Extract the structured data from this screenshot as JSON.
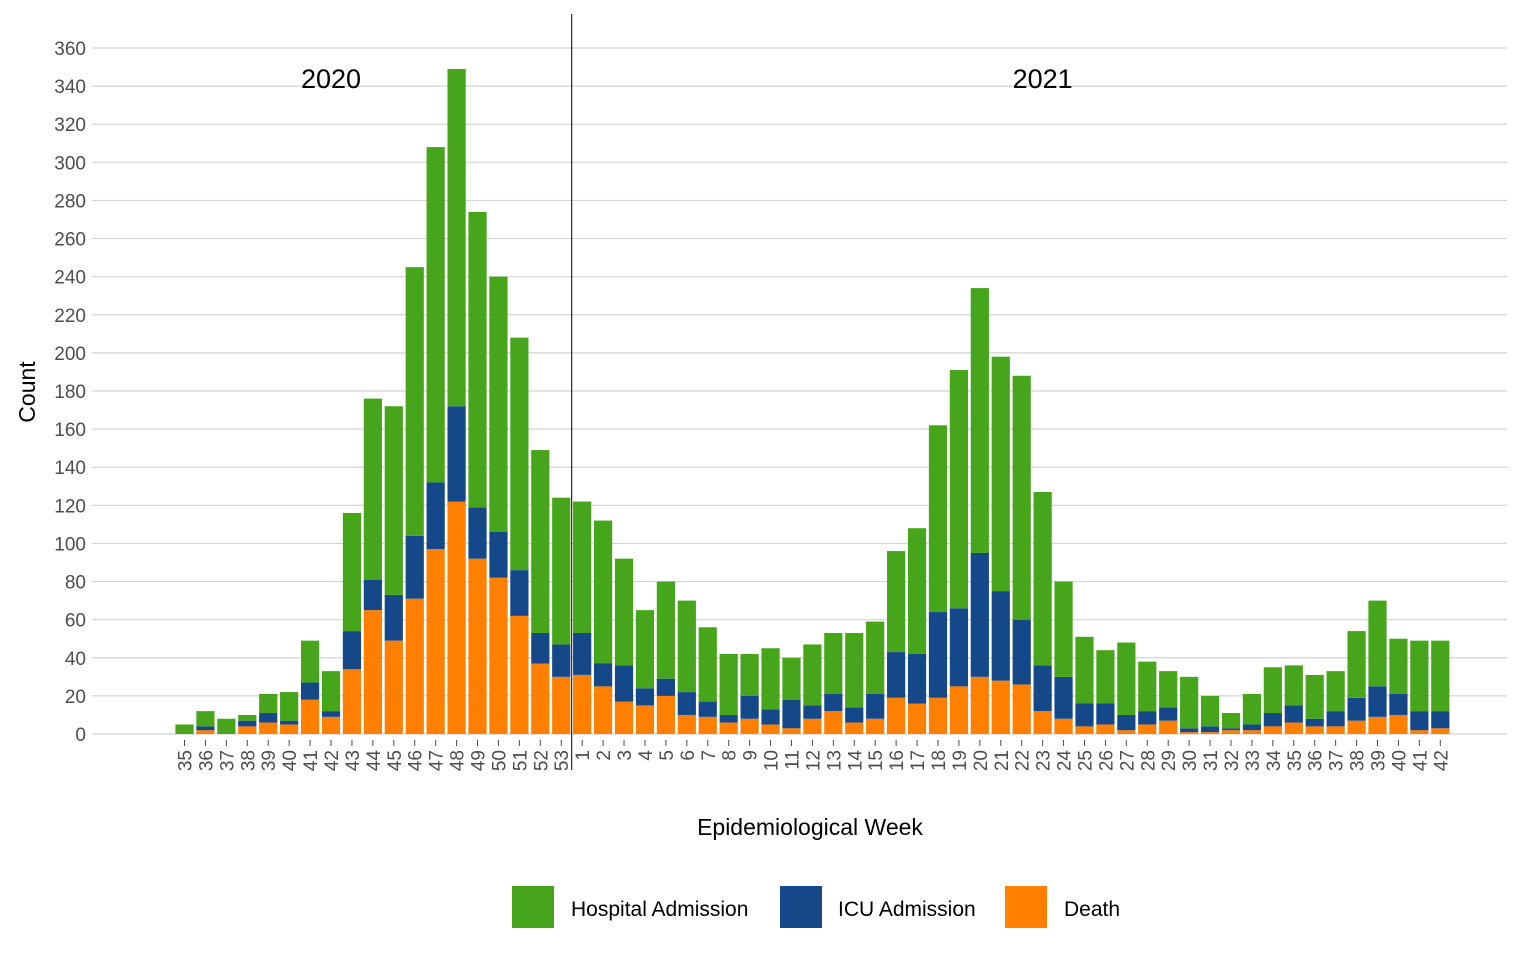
{
  "chart_data": {
    "type": "bar",
    "stacked": true,
    "ylabel": "Count",
    "xlabel": "Epidemiological Week",
    "ylim": [
      0,
      360
    ],
    "yticks": [
      0,
      20,
      40,
      60,
      80,
      100,
      120,
      140,
      160,
      180,
      200,
      220,
      240,
      260,
      280,
      300,
      320,
      340,
      360
    ],
    "grid": true,
    "legend_position": "bottom",
    "year_labels": [
      {
        "text": "2020",
        "category_index": 7
      },
      {
        "text": "2021",
        "category_index": 41
      }
    ],
    "divider_before_index": 19,
    "categories": [
      "35",
      "36",
      "37",
      "38",
      "39",
      "40",
      "41",
      "42",
      "43",
      "44",
      "45",
      "46",
      "47",
      "48",
      "49",
      "50",
      "51",
      "52",
      "53",
      "1",
      "2",
      "3",
      "4",
      "5",
      "6",
      "7",
      "8",
      "9",
      "10",
      "11",
      "12",
      "13",
      "14",
      "15",
      "16",
      "17",
      "18",
      "19",
      "20",
      "21",
      "22",
      "23",
      "24",
      "25",
      "26",
      "27",
      "28",
      "29",
      "30",
      "31",
      "32",
      "33",
      "34",
      "35",
      "36",
      "37",
      "38",
      "39",
      "40",
      "41",
      "42"
    ],
    "series": [
      {
        "name": "Death",
        "color": "#FF7F00",
        "values": [
          0,
          2,
          0,
          4,
          6,
          5,
          18,
          9,
          34,
          65,
          49,
          71,
          97,
          122,
          92,
          82,
          62,
          37,
          30,
          31,
          25,
          17,
          15,
          20,
          10,
          9,
          6,
          8,
          5,
          3,
          8,
          12,
          6,
          8,
          19,
          16,
          19,
          25,
          30,
          28,
          26,
          12,
          8,
          4,
          5,
          2,
          5,
          7,
          1,
          1,
          2,
          2,
          4,
          6,
          4,
          4,
          7,
          9,
          10,
          2,
          3
        ]
      },
      {
        "name": "ICU Admission",
        "color": "#154889",
        "values": [
          0,
          2,
          0,
          3,
          5,
          2,
          9,
          3,
          20,
          16,
          24,
          33,
          35,
          50,
          27,
          24,
          24,
          16,
          17,
          22,
          12,
          19,
          9,
          9,
          12,
          8,
          4,
          12,
          8,
          15,
          7,
          9,
          8,
          13,
          24,
          26,
          45,
          41,
          65,
          47,
          34,
          24,
          22,
          12,
          11,
          8,
          7,
          7,
          2,
          3,
          1,
          3,
          7,
          9,
          4,
          8,
          12,
          16,
          11,
          10,
          9
        ]
      },
      {
        "name": "Hospital Admission",
        "color": "#47A51B",
        "values": [
          5,
          8,
          8,
          3,
          10,
          15,
          22,
          21,
          62,
          95,
          99,
          141,
          176,
          177,
          155,
          134,
          122,
          96,
          77,
          69,
          75,
          56,
          41,
          51,
          48,
          39,
          32,
          22,
          32,
          22,
          32,
          32,
          39,
          38,
          53,
          66,
          98,
          125,
          139,
          123,
          128,
          91,
          50,
          35,
          28,
          38,
          26,
          19,
          27,
          16,
          8,
          16,
          24,
          21,
          23,
          21,
          35,
          45,
          29,
          37,
          37
        ]
      }
    ],
    "legend": [
      {
        "name": "Hospital Admission",
        "color": "#47A51B"
      },
      {
        "name": "ICU Admission",
        "color": "#154889"
      },
      {
        "name": "Death",
        "color": "#FF7F00"
      }
    ]
  }
}
